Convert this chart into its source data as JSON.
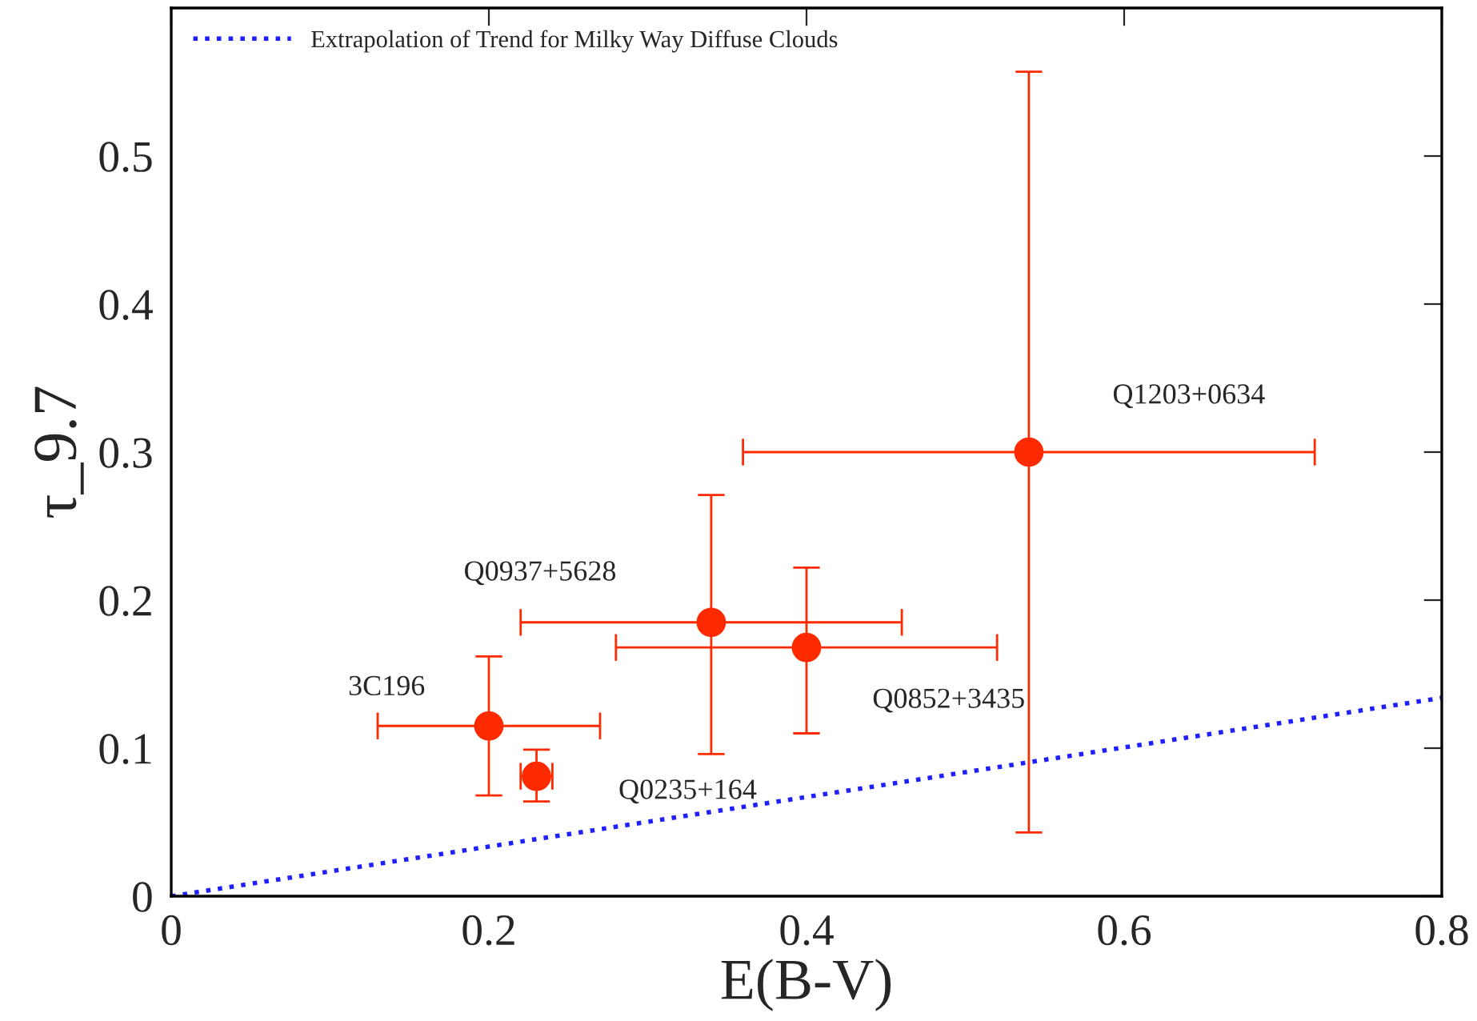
{
  "chart_data": {
    "type": "scatter",
    "xlabel": "E(B-V)",
    "ylabel": "τ_9.7",
    "xlim": [
      0,
      0.8
    ],
    "ylim": [
      0,
      0.6
    ],
    "xticks": [
      0,
      0.2,
      0.4,
      0.6,
      0.8
    ],
    "yticks": [
      0,
      0.1,
      0.2,
      0.3,
      0.4,
      0.5
    ],
    "grid": false,
    "legend": "top left",
    "series": [
      {
        "color": "#ff2a00",
        "marker": "circle",
        "x": [
          0.2,
          0.23,
          0.34,
          0.4,
          0.54
        ],
        "values": [
          0.115,
          0.081,
          0.185,
          0.168,
          0.3
        ],
        "errors": [
          [
            0.068,
            0.162
          ],
          [
            0.064,
            0.099
          ],
          [
            0.096,
            0.271
          ],
          [
            0.11,
            0.222
          ],
          [
            0.043,
            0.557
          ]
        ],
        "xerrors": [
          [
            0.13,
            0.27
          ],
          [
            0.22,
            0.24
          ],
          [
            0.22,
            0.46
          ],
          [
            0.28,
            0.52
          ],
          [
            0.36,
            0.72
          ]
        ]
      },
      {
        "type": "line",
        "name": "Extrapolation of Trend for Milky Way Diffuse Clouds",
        "color": "#2020ff",
        "line_style": "dotted",
        "x": [
          0,
          0.8
        ],
        "values": [
          0,
          0.134
        ]
      }
    ],
    "annotations": [
      "3C196",
      "Q0235+164",
      "Q0937+5628",
      "Q0852+3435",
      "Q1203+0634"
    ]
  }
}
